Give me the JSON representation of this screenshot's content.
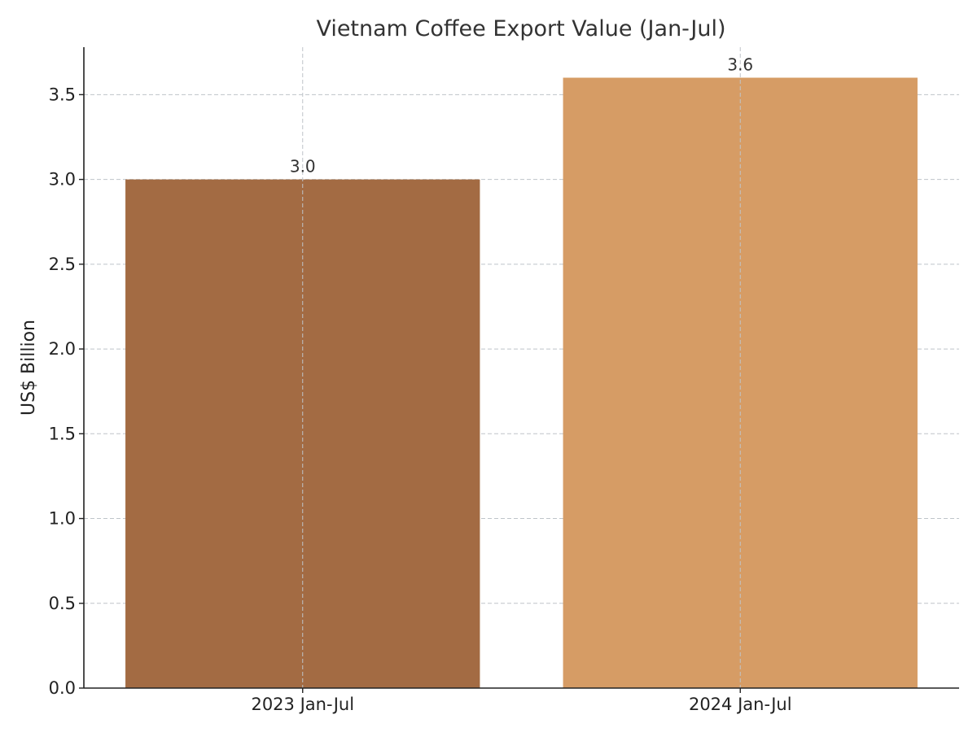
{
  "chart_data": {
    "type": "bar",
    "title": "Vietnam Coffee Export Value (Jan-Jul)",
    "xlabel": "",
    "ylabel": "US$ Billion",
    "categories": [
      "2023 Jan-Jul",
      "2024 Jan-Jul"
    ],
    "values": [
      3.0,
      3.6
    ],
    "data_labels": [
      "3.0",
      "3.6"
    ],
    "bar_colors": [
      "#a36b43",
      "#d69c65"
    ],
    "ylim": [
      0,
      3.78
    ],
    "yticks": [
      0.0,
      0.5,
      1.0,
      1.5,
      2.0,
      2.5,
      3.0,
      3.5
    ],
    "ytick_labels": [
      "0.0",
      "0.5",
      "1.0",
      "1.5",
      "2.0",
      "2.5",
      "3.0",
      "3.5"
    ],
    "grid": true,
    "grid_style": "dashed",
    "legend": "none"
  }
}
